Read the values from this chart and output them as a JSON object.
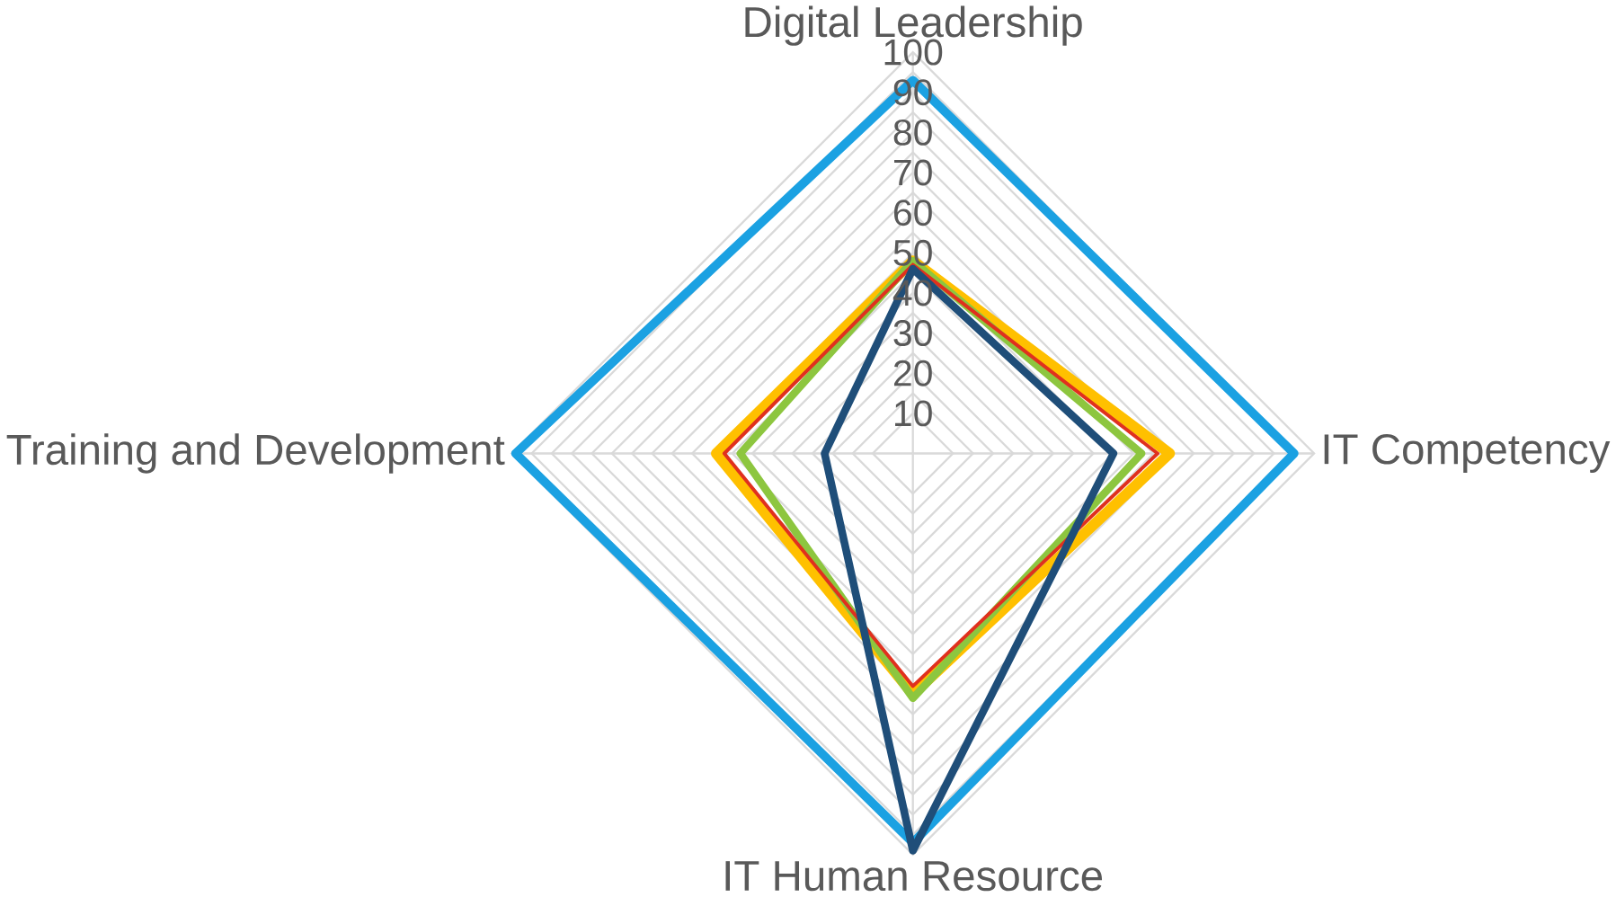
{
  "chart_data": {
    "type": "radar",
    "categories": [
      "Digital Leadership",
      "IT Competency",
      "IT Human Resource",
      "Training and Development"
    ],
    "ylim": [
      0,
      100
    ],
    "yticks": [
      10,
      20,
      30,
      40,
      50,
      60,
      70,
      80,
      90,
      100
    ],
    "grid": true,
    "marker": "none",
    "line_style": "solid",
    "series": [
      {
        "color": "#1ba1e2",
        "values": [
          93,
          95,
          97,
          99
        ]
      },
      {
        "color": "#ffc000",
        "values": [
          48,
          64,
          60,
          49
        ]
      },
      {
        "color": "#8dc63f",
        "values": [
          48,
          57,
          61,
          43
        ]
      },
      {
        "color": "#e0301e",
        "values": [
          47,
          61,
          58,
          47
        ]
      },
      {
        "color": "#1f4e79",
        "values": [
          46,
          50,
          99,
          22
        ]
      }
    ]
  }
}
